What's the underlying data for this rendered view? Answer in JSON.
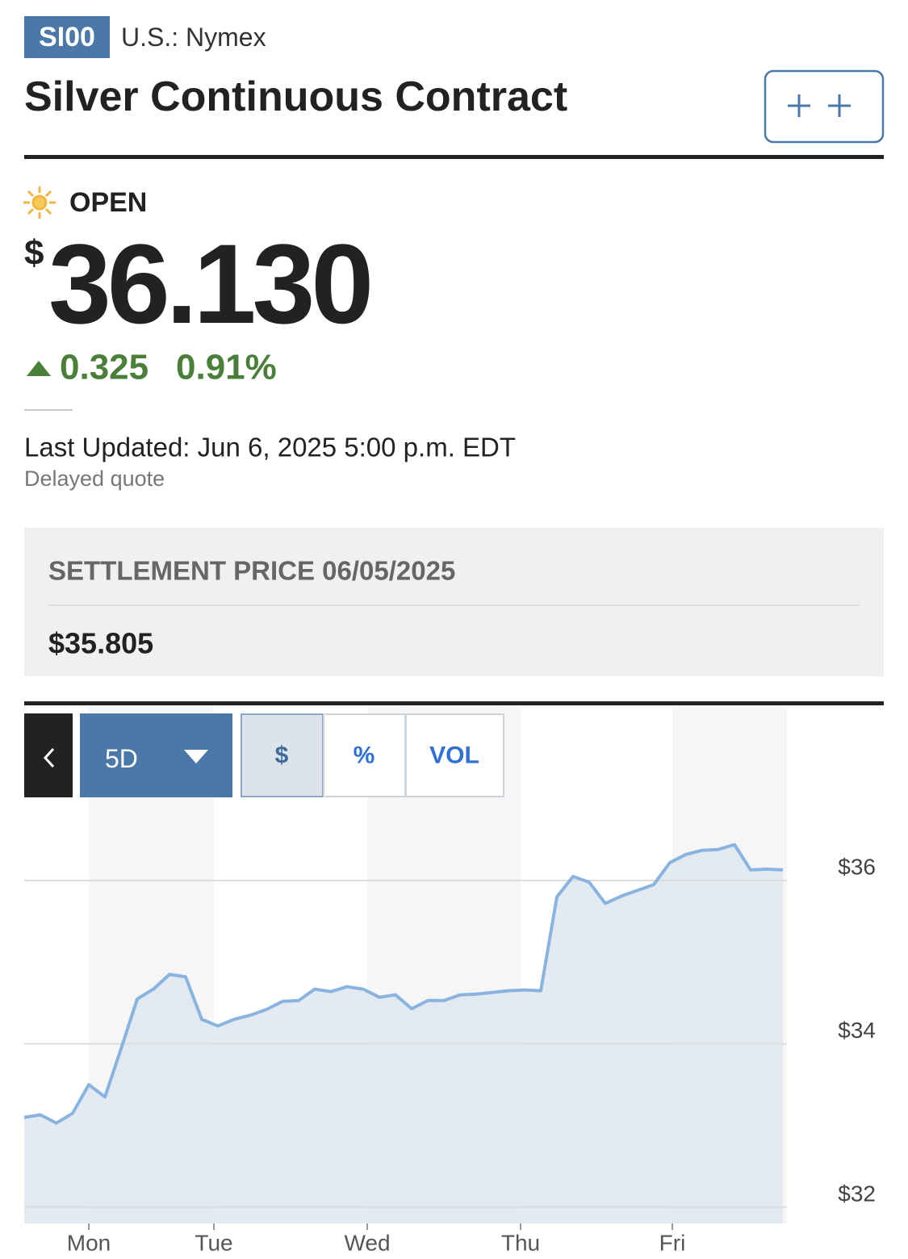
{
  "header": {
    "symbol": "SI00",
    "exchange": "U.S.: Nymex",
    "title": "Silver Continuous Contract"
  },
  "quote": {
    "status": "OPEN",
    "currency": "$",
    "price": "36.130",
    "change": "0.325",
    "change_percent": "0.91%",
    "last_updated": "Last Updated: Jun 6, 2025 5:00 p.m. EDT",
    "delay_note": "Delayed quote"
  },
  "settlement": {
    "label": "SETTLEMENT PRICE 06/05/2025",
    "value": "$35.805"
  },
  "controls": {
    "range": "5D",
    "tabs": [
      "$",
      "%",
      "VOL"
    ]
  },
  "chart_data": {
    "type": "line",
    "x_tick_labels": [
      "Mon",
      "Tue",
      "Wed",
      "Thu",
      "Fri"
    ],
    "values": [
      33.1,
      33.13,
      33.03,
      33.15,
      33.5,
      33.35,
      33.94,
      34.55,
      34.67,
      34.85,
      34.82,
      34.3,
      34.22,
      34.3,
      34.35,
      34.42,
      34.52,
      34.53,
      34.67,
      34.64,
      34.7,
      34.67,
      34.57,
      34.6,
      34.43,
      34.53,
      34.53,
      34.6,
      34.61,
      34.63,
      34.65,
      34.66,
      34.65,
      35.8,
      36.05,
      35.98,
      35.72,
      35.81,
      35.88,
      35.95,
      36.22,
      36.32,
      36.37,
      36.38,
      36.44,
      36.13,
      36.14,
      36.13
    ],
    "color": "#8ab4e0",
    "fill": "#dfe6ee",
    "ylim": [
      31.8,
      36.9
    ],
    "yticks": [
      {
        "value": 32,
        "label": "$32"
      },
      {
        "value": 34,
        "label": "$34"
      },
      {
        "value": 36,
        "label": "$36"
      }
    ],
    "grid": true
  }
}
